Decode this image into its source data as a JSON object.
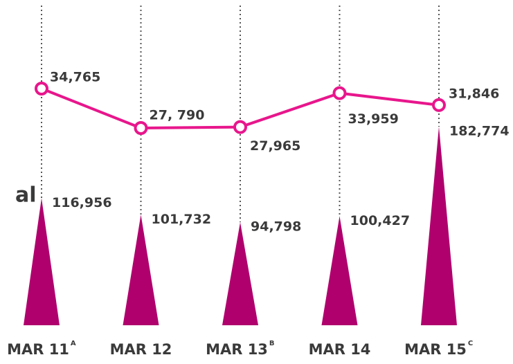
{
  "chart_data": {
    "type": "line-and-spike",
    "annotation": "al",
    "categories": [
      "MAR 11",
      "MAR 12",
      "MAR 13",
      "MAR 14",
      "MAR 15"
    ],
    "category_notes": [
      "A",
      null,
      "B",
      null,
      "C"
    ],
    "series": [
      {
        "type": "line",
        "color": "#e8168c",
        "values": [
          34765,
          27790,
          27965,
          33959,
          31846
        ],
        "value_labels": [
          "34,765",
          "27, 790",
          "27,965",
          "33,959",
          "31,846"
        ]
      },
      {
        "type": "spike",
        "color": "#b0006d",
        "values": [
          116956,
          101732,
          94798,
          100427,
          182774
        ],
        "value_labels": [
          "116,956",
          "101,732",
          "94,798",
          "100,427",
          "182,774"
        ]
      }
    ]
  }
}
